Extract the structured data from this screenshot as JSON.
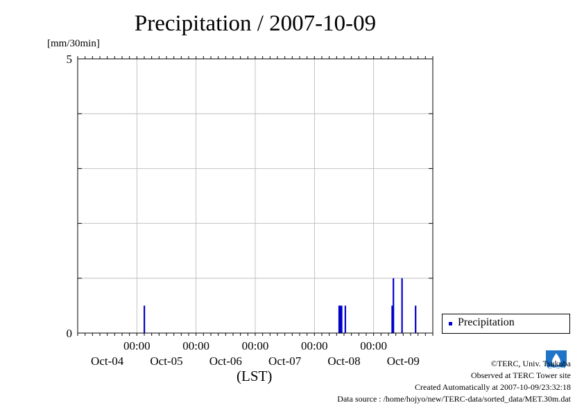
{
  "title": "Precipitation / 2007-10-09",
  "unit_label": "[mm/30min]",
  "x_axis_label": "(LST)",
  "legend": {
    "label": "Precipitation"
  },
  "credits": {
    "copyright": "©TERC, Univ. Tsukuba",
    "observed": "Observed at TERC Tower site",
    "created": "Created Automatically at 2007-10-09/23:32:18",
    "source": "Data source : /home/hojyo/new/TERC-data/sorted_data/MET.30m.dat"
  },
  "colors": {
    "series": "#0000c8",
    "grid": "#b4b4b4",
    "logo": "#1f74c8"
  },
  "icons": {
    "logo": "terc-logo"
  },
  "chart_data": {
    "type": "bar",
    "title": "Precipitation / 2007-10-09",
    "ylabel": "[mm/30min]",
    "xlabel": "(LST)",
    "ylim": [
      0,
      5
    ],
    "y_ticks": [
      0,
      1,
      2,
      3,
      4,
      5
    ],
    "y_tick_labels": [
      "0",
      "",
      "",
      "",
      "",
      "5"
    ],
    "xlim": [
      "2007-10-04 00:00",
      "2007-10-10 00:00"
    ],
    "x_ticks": [
      {
        "time": "2007-10-05 00:00",
        "label_top": "00:00",
        "label_bottom": ""
      },
      {
        "time": "2007-10-06 00:00",
        "label_top": "00:00",
        "label_bottom": ""
      },
      {
        "time": "2007-10-07 00:00",
        "label_top": "00:00",
        "label_bottom": ""
      },
      {
        "time": "2007-10-08 00:00",
        "label_top": "00:00",
        "label_bottom": ""
      },
      {
        "time": "2007-10-09 00:00",
        "label_top": "00:00",
        "label_bottom": ""
      }
    ],
    "date_labels": [
      {
        "time": "2007-10-04 12:00",
        "label": "Oct-04"
      },
      {
        "time": "2007-10-05 12:00",
        "label": "Oct-05"
      },
      {
        "time": "2007-10-06 12:00",
        "label": "Oct-06"
      },
      {
        "time": "2007-10-07 12:00",
        "label": "Oct-07"
      },
      {
        "time": "2007-10-08 12:00",
        "label": "Oct-08"
      },
      {
        "time": "2007-10-09 12:00",
        "label": "Oct-09"
      }
    ],
    "grid": true,
    "legend_position": "right",
    "series": [
      {
        "name": "Precipitation",
        "points": [
          {
            "x": "2007-10-05 03:00",
            "y": 0.5
          },
          {
            "x": "2007-10-08 10:00",
            "y": 0.5
          },
          {
            "x": "2007-10-08 10:30",
            "y": 0.5
          },
          {
            "x": "2007-10-08 11:00",
            "y": 0.5
          },
          {
            "x": "2007-10-08 12:30",
            "y": 0.5
          },
          {
            "x": "2007-10-09 07:30",
            "y": 0.5
          },
          {
            "x": "2007-10-09 08:00",
            "y": 1.0
          },
          {
            "x": "2007-10-09 11:30",
            "y": 1.0
          },
          {
            "x": "2007-10-09 17:00",
            "y": 0.5
          }
        ]
      }
    ]
  }
}
